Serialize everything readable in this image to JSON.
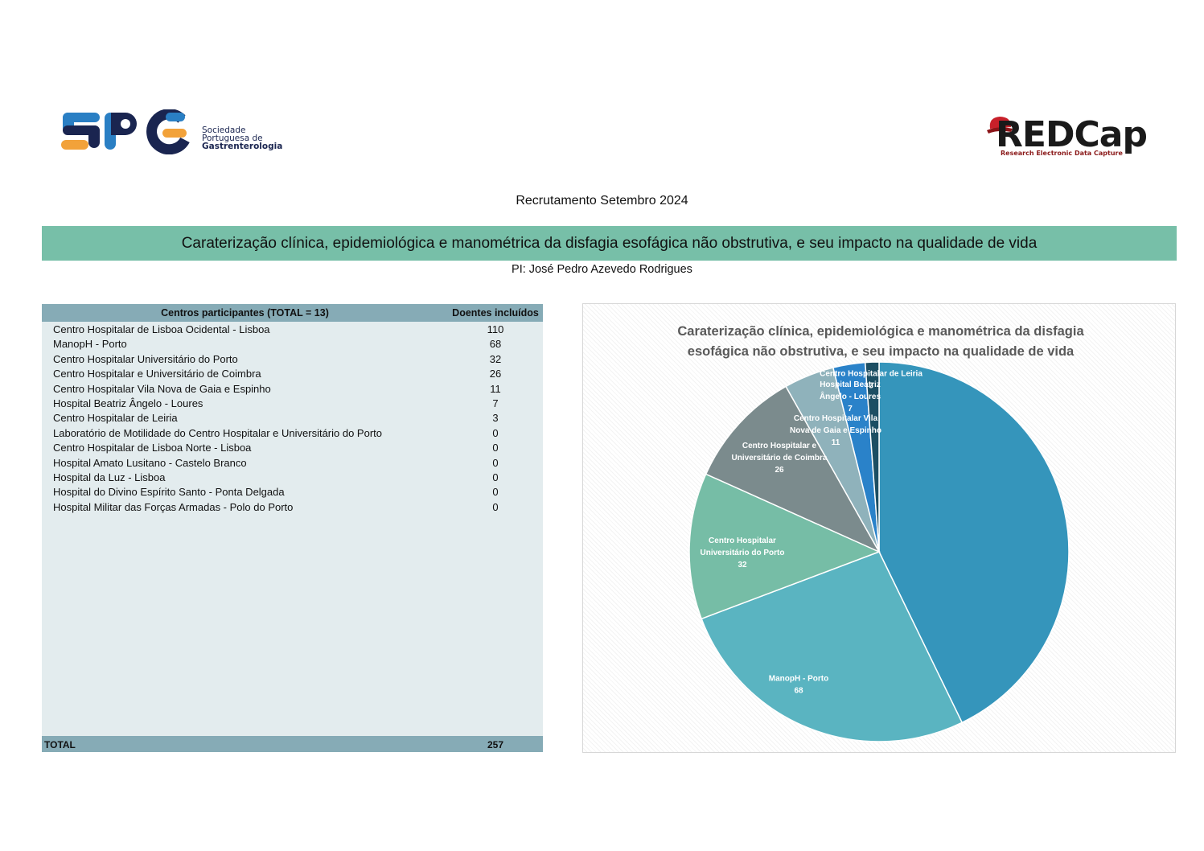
{
  "logos": {
    "spg": {
      "mark": "SPG",
      "text_line1": "Sociedade",
      "text_line2": "Portuguesa de",
      "text_line3": "Gastrenterologia"
    },
    "redcap": {
      "word": "REDCap",
      "tagline": "Research Electronic Data Capture"
    }
  },
  "header": {
    "subtitle": "Recrutamento Setembro 2024",
    "banner_title": "Caraterização clínica, epidemiológica e manométrica da disfagia esofágica não obstrutiva, e seu impacto na qualidade de vida",
    "pi": "PI: José Pedro Azevedo Rodrigues"
  },
  "table": {
    "col_center": "Centros participantes (TOTAL = 13)",
    "col_count": "Doentes incluídos",
    "rows": [
      {
        "name": "Centro Hospitalar de Lisboa Ocidental - Lisboa",
        "count": "110"
      },
      {
        "name": "ManopH - Porto",
        "count": "68"
      },
      {
        "name": "Centro Hospitalar Universitário do Porto",
        "count": "32"
      },
      {
        "name": "Centro Hospitalar e Universitário de Coimbra",
        "count": "26"
      },
      {
        "name": "Centro Hospitalar Vila Nova de Gaia e Espinho",
        "count": "11"
      },
      {
        "name": "Hospital Beatriz Ângelo - Loures",
        "count": "7"
      },
      {
        "name": "Centro Hospitalar de Leiria",
        "count": "3"
      },
      {
        "name": "Laboratório de Motilidade do Centro Hospitalar e Universitário do Porto",
        "count": "0"
      },
      {
        "name": "Centro Hospitalar de Lisboa Norte - Lisboa",
        "count": "0"
      },
      {
        "name": "Hospital Amato Lusitano - Castelo Branco",
        "count": "0"
      },
      {
        "name": "Hospital da Luz - Lisboa",
        "count": "0"
      },
      {
        "name": "Hospital do Divino Espírito Santo - Ponta Delgada",
        "count": "0"
      },
      {
        "name": "Hospital Militar das Forças Armadas - Polo do Porto",
        "count": "0"
      }
    ],
    "total_label": "TOTAL",
    "total_value": "257"
  },
  "chart_data": {
    "type": "pie",
    "title_line1": "Caraterização clínica, epidemiológica e manométrica da disfagia",
    "title_line2": "esofágica não obstrutiva, e seu impacto na qualidade de vida",
    "slices": [
      {
        "label_lines": [
          "Centro Hospitalar  de",
          "Lisboa  Ocidental  - Lisboa"
        ],
        "value": 110,
        "color": "#3595bb"
      },
      {
        "label_lines": [
          "ManopH - Porto"
        ],
        "value": 68,
        "color": "#5ab4c1"
      },
      {
        "label_lines": [
          "Centro Hospitalar",
          "Universitário do Porto"
        ],
        "value": 32,
        "color": "#76bda6"
      },
      {
        "label_lines": [
          "Centro Hospitalar  e",
          "Universitário de Coimbra"
        ],
        "value": 26,
        "color": "#7b8b8d"
      },
      {
        "label_lines": [
          "Centro Hospitalar  Vila",
          "Nova de Gaia  e Espinho"
        ],
        "value": 11,
        "color": "#8fb2bb"
      },
      {
        "label_lines": [
          "Hospital  Beatriz",
          "Ângelo - Loures"
        ],
        "value": 7,
        "color": "#2a82c9"
      },
      {
        "label_lines": [
          "Centro Hospitalar  de Leiria"
        ],
        "value": 3,
        "color": "#1c4e63"
      }
    ]
  }
}
